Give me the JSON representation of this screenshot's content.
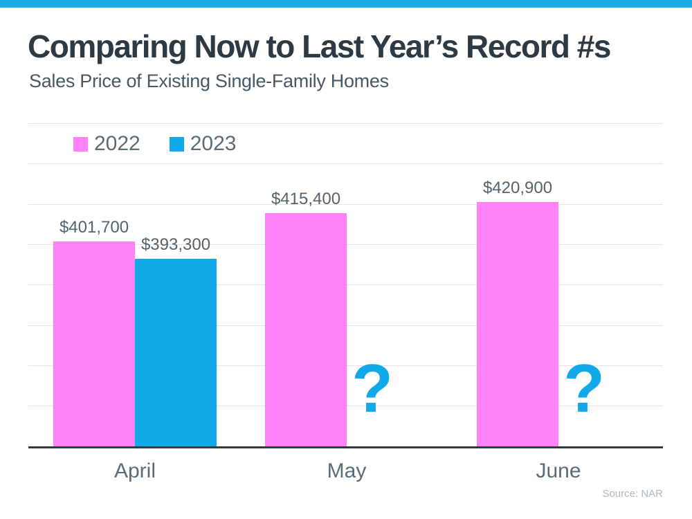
{
  "palette": {
    "top_strip": "#18ACE9",
    "pink": "#FF82F7",
    "blue": "#12A9E8",
    "title_text": "#2D3943",
    "subtitle_text": "#475763",
    "label_text": "#52636F",
    "axis_text": "#5A6B78",
    "gridline": "#E2E4E7",
    "axis_line": "#2E3940",
    "source_text": "#AAB8C2"
  },
  "header": {
    "title": "Comparing Now to Last Year’s Record #s",
    "subtitle": "Sales Price of Existing Single-Family Homes"
  },
  "legend": {
    "items": [
      {
        "label": "2022",
        "color_key": "pink"
      },
      {
        "label": "2023",
        "color_key": "blue"
      }
    ]
  },
  "chart_data": {
    "type": "bar",
    "categories": [
      "April",
      "May",
      "June"
    ],
    "series": [
      {
        "name": "2022",
        "color_key": "pink",
        "values": [
          401700,
          415400,
          420900
        ],
        "labels": [
          "$401,700",
          "$415,400",
          "$420,900"
        ]
      },
      {
        "name": "2023",
        "color_key": "blue",
        "values": [
          393300,
          null,
          null
        ],
        "labels": [
          "$393,300",
          null,
          null
        ]
      }
    ],
    "missing_value_marker": "?",
    "value_prefix": "$",
    "ylim": [
      302000,
      460000
    ],
    "gridlines": true,
    "legend_position": "top-left",
    "xlabel": "",
    "ylabel": ""
  },
  "footer": {
    "source": "Source: NAR"
  }
}
